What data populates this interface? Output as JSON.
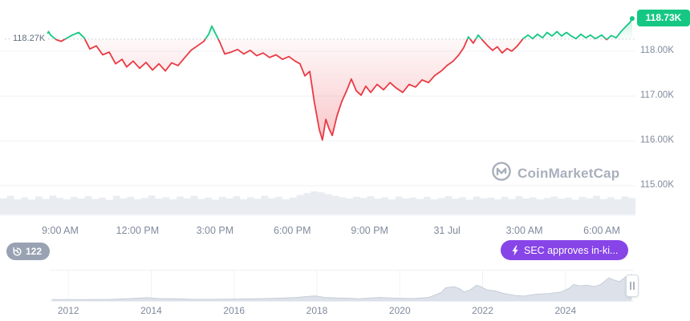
{
  "colors": {
    "green": "#16c784",
    "red": "#ea3943",
    "purple": "#8745e8",
    "gray_text": "#808a9d",
    "grid": "#eff2f5",
    "volume": "#e9edf2",
    "nav_fill": "#dde2ea",
    "nav_edge": "#c6cdd9",
    "badge_gray": "#99a2b2",
    "dotted": "#c2c8d2",
    "watermark": "#a9b0bc"
  },
  "watermark": {
    "text": "CoinMarketCap"
  },
  "badges": {
    "history_count": "122",
    "news_label": "SEC approves in-ki..."
  },
  "chart_data": {
    "type": "line",
    "current": {
      "label": "118.73K",
      "value": 118.73
    },
    "reference": {
      "label": "118.27K",
      "value": 118.27
    },
    "ylim": [
      114.3,
      119.1
    ],
    "y_ticks": [
      {
        "label": "118.00K",
        "value": 118
      },
      {
        "label": "117.00K",
        "value": 117
      },
      {
        "label": "116.00K",
        "value": 116
      },
      {
        "label": "115.00K",
        "value": 115
      }
    ],
    "x_ticks": [
      {
        "label": "9:00 AM",
        "hour": 9
      },
      {
        "label": "12:00 PM",
        "hour": 12
      },
      {
        "label": "3:00 PM",
        "hour": 15
      },
      {
        "label": "6:00 PM",
        "hour": 18
      },
      {
        "label": "9:00 PM",
        "hour": 21
      },
      {
        "label": "31 Jul",
        "hour": 24
      },
      {
        "label": "3:00 AM",
        "hour": 27
      },
      {
        "label": "6:00 AM",
        "hour": 30
      }
    ],
    "series": [
      {
        "name": "price",
        "unit": "K",
        "points": [
          [
            8.44,
            118.3
          ],
          [
            8.55,
            118.44
          ],
          [
            8.63,
            118.36
          ],
          [
            8.84,
            118.26
          ],
          [
            9.03,
            118.22
          ],
          [
            9.22,
            118.28
          ],
          [
            9.47,
            118.36
          ],
          [
            9.72,
            118.42
          ],
          [
            9.93,
            118.3
          ],
          [
            10.15,
            118.05
          ],
          [
            10.4,
            118.12
          ],
          [
            10.65,
            117.92
          ],
          [
            10.9,
            117.98
          ],
          [
            11.15,
            117.72
          ],
          [
            11.4,
            117.82
          ],
          [
            11.58,
            117.65
          ],
          [
            11.83,
            117.78
          ],
          [
            12.08,
            117.62
          ],
          [
            12.33,
            117.75
          ],
          [
            12.58,
            117.58
          ],
          [
            12.83,
            117.72
          ],
          [
            13.08,
            117.56
          ],
          [
            13.32,
            117.74
          ],
          [
            13.57,
            117.68
          ],
          [
            13.82,
            117.85
          ],
          [
            14.07,
            118.02
          ],
          [
            14.32,
            118.12
          ],
          [
            14.57,
            118.22
          ],
          [
            14.76,
            118.38
          ],
          [
            14.88,
            118.56
          ],
          [
            15.0,
            118.42
          ],
          [
            15.19,
            118.2
          ],
          [
            15.38,
            117.94
          ],
          [
            15.63,
            117.98
          ],
          [
            15.88,
            118.04
          ],
          [
            16.12,
            117.94
          ],
          [
            16.37,
            118.02
          ],
          [
            16.62,
            117.9
          ],
          [
            16.87,
            117.96
          ],
          [
            17.12,
            117.86
          ],
          [
            17.37,
            117.92
          ],
          [
            17.62,
            117.82
          ],
          [
            17.87,
            117.88
          ],
          [
            18.11,
            117.78
          ],
          [
            18.3,
            117.72
          ],
          [
            18.49,
            117.45
          ],
          [
            18.68,
            117.55
          ],
          [
            18.86,
            116.85
          ],
          [
            19.05,
            116.25
          ],
          [
            19.17,
            116.02
          ],
          [
            19.3,
            116.48
          ],
          [
            19.42,
            116.28
          ],
          [
            19.55,
            116.12
          ],
          [
            19.73,
            116.55
          ],
          [
            19.92,
            116.88
          ],
          [
            20.11,
            117.12
          ],
          [
            20.29,
            117.38
          ],
          [
            20.48,
            117.12
          ],
          [
            20.67,
            117.02
          ],
          [
            20.85,
            117.22
          ],
          [
            21.04,
            117.08
          ],
          [
            21.29,
            117.26
          ],
          [
            21.54,
            117.14
          ],
          [
            21.79,
            117.3
          ],
          [
            22.03,
            117.18
          ],
          [
            22.28,
            117.08
          ],
          [
            22.53,
            117.26
          ],
          [
            22.78,
            117.2
          ],
          [
            23.03,
            117.36
          ],
          [
            23.28,
            117.3
          ],
          [
            23.53,
            117.46
          ],
          [
            23.78,
            117.56
          ],
          [
            24.0,
            117.68
          ],
          [
            24.24,
            117.78
          ],
          [
            24.46,
            117.92
          ],
          [
            24.65,
            118.08
          ],
          [
            24.83,
            118.32
          ],
          [
            25.02,
            118.18
          ],
          [
            25.21,
            118.36
          ],
          [
            25.39,
            118.24
          ],
          [
            25.58,
            118.12
          ],
          [
            25.77,
            118.02
          ],
          [
            25.95,
            118.1
          ],
          [
            26.14,
            117.96
          ],
          [
            26.33,
            118.06
          ],
          [
            26.51,
            118.0
          ],
          [
            26.73,
            118.12
          ],
          [
            26.95,
            118.28
          ],
          [
            27.14,
            118.36
          ],
          [
            27.32,
            118.28
          ],
          [
            27.51,
            118.38
          ],
          [
            27.7,
            118.3
          ],
          [
            27.88,
            118.42
          ],
          [
            28.07,
            118.34
          ],
          [
            28.26,
            118.44
          ],
          [
            28.44,
            118.34
          ],
          [
            28.63,
            118.42
          ],
          [
            28.82,
            118.34
          ],
          [
            29.0,
            118.28
          ],
          [
            29.19,
            118.38
          ],
          [
            29.38,
            118.3
          ],
          [
            29.56,
            118.36
          ],
          [
            29.75,
            118.28
          ],
          [
            30.0,
            118.36
          ],
          [
            30.19,
            118.26
          ],
          [
            30.37,
            118.35
          ],
          [
            30.56,
            118.3
          ],
          [
            30.75,
            118.44
          ],
          [
            30.93,
            118.55
          ],
          [
            31.09,
            118.64
          ],
          [
            31.18,
            118.73
          ]
        ]
      }
    ],
    "volume_profile": [
      0.55,
      0.7,
      0.5,
      0.62,
      0.48,
      0.66,
      0.52,
      0.72,
      0.58,
      0.5,
      0.64,
      0.55,
      0.68,
      0.52,
      0.6,
      0.47,
      0.7,
      0.55,
      0.65,
      0.5,
      0.58,
      0.72,
      0.54,
      0.62,
      0.5,
      0.66,
      0.56,
      0.7,
      0.52,
      0.6,
      0.48,
      0.64,
      0.55,
      0.68,
      0.5,
      0.62,
      0.53,
      0.7,
      0.56,
      0.64,
      0.5,
      0.6,
      0.75,
      0.85,
      0.95,
      0.9,
      0.8,
      0.7,
      0.62,
      0.55,
      0.65,
      0.58,
      0.68,
      0.54,
      0.62,
      0.5,
      0.66,
      0.55,
      0.6,
      0.52,
      0.64,
      0.5,
      0.58,
      0.68,
      0.54,
      0.62,
      0.48,
      0.66,
      0.56,
      0.6,
      0.5,
      0.64,
      0.52,
      0.68,
      0.55,
      0.62,
      0.5,
      0.58,
      0.66,
      0.54,
      0.6,
      0.48,
      0.64,
      0.56,
      0.7,
      0.52,
      0.62,
      0.5,
      0.66,
      0.58
    ],
    "navigator": {
      "x_range": [
        2011.55,
        2025.65
      ],
      "year_ticks": [
        {
          "label": "2012",
          "year": 2012
        },
        {
          "label": "2014",
          "year": 2014
        },
        {
          "label": "2016",
          "year": 2016
        },
        {
          "label": "2018",
          "year": 2018
        },
        {
          "label": "2020",
          "year": 2020
        },
        {
          "label": "2022",
          "year": 2022
        },
        {
          "label": "2024",
          "year": 2024
        }
      ],
      "points": [
        [
          2011.6,
          0.02
        ],
        [
          2012.0,
          0.02
        ],
        [
          2012.5,
          0.02
        ],
        [
          2013.0,
          0.03
        ],
        [
          2013.4,
          0.05
        ],
        [
          2013.9,
          0.09
        ],
        [
          2014.2,
          0.06
        ],
        [
          2014.6,
          0.05
        ],
        [
          2015.0,
          0.03
        ],
        [
          2015.5,
          0.03
        ],
        [
          2016.0,
          0.04
        ],
        [
          2016.5,
          0.05
        ],
        [
          2017.0,
          0.07
        ],
        [
          2017.5,
          0.1
        ],
        [
          2017.95,
          0.16
        ],
        [
          2018.2,
          0.1
        ],
        [
          2018.5,
          0.08
        ],
        [
          2018.8,
          0.07
        ],
        [
          2019.0,
          0.05
        ],
        [
          2019.5,
          0.1
        ],
        [
          2019.8,
          0.08
        ],
        [
          2020.0,
          0.07
        ],
        [
          2020.3,
          0.06
        ],
        [
          2020.7,
          0.1
        ],
        [
          2021.0,
          0.28
        ],
        [
          2021.1,
          0.45
        ],
        [
          2021.3,
          0.5
        ],
        [
          2021.45,
          0.42
        ],
        [
          2021.55,
          0.3
        ],
        [
          2021.7,
          0.38
        ],
        [
          2021.85,
          0.55
        ],
        [
          2021.95,
          0.5
        ],
        [
          2022.1,
          0.38
        ],
        [
          2022.3,
          0.34
        ],
        [
          2022.5,
          0.25
        ],
        [
          2022.8,
          0.17
        ],
        [
          2023.0,
          0.15
        ],
        [
          2023.3,
          0.22
        ],
        [
          2023.6,
          0.24
        ],
        [
          2023.9,
          0.3
        ],
        [
          2024.1,
          0.45
        ],
        [
          2024.2,
          0.58
        ],
        [
          2024.35,
          0.52
        ],
        [
          2024.5,
          0.55
        ],
        [
          2024.7,
          0.5
        ],
        [
          2024.85,
          0.58
        ],
        [
          2024.95,
          0.7
        ],
        [
          2025.05,
          0.82
        ],
        [
          2025.15,
          0.75
        ],
        [
          2025.3,
          0.68
        ],
        [
          2025.45,
          0.85
        ],
        [
          2025.6,
          0.95
        ]
      ]
    }
  }
}
